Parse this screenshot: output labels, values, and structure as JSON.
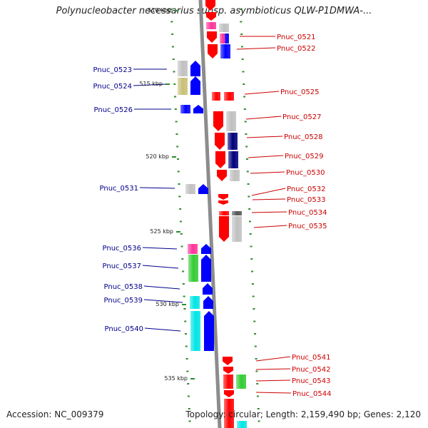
{
  "title": "Polynucleobacter necessarius subsp. asymbioticus QLW-P1DMWA-...",
  "footer": {
    "accession": "Accession: NC_009379",
    "topology": "Topology: circular; Length: 2,159,490 bp; Genes: 2,120"
  },
  "colors": {
    "left_label": "#00008b",
    "right_label": "#cc0000",
    "backbone": "#8c8c8c",
    "tick": "#2e8b2e",
    "gene_red": "#ff0000",
    "gene_blue": "#0000ff",
    "gene_gray": "#c0c0c0",
    "gene_green": "#33cc33",
    "gene_cyan": "#00e5e5",
    "gene_pink": "#ff3399",
    "gene_navy": "#00007a",
    "gene_olive": "#c8c078"
  },
  "scale": {
    "labels": [
      "510 kbp",
      "515 kbp",
      "520 kbp",
      "525 kbp",
      "530 kbp",
      "535 kbp"
    ]
  },
  "genes": {
    "left": [
      "Pnuc_0523",
      "Pnuc_0524",
      "Pnuc_0526",
      "Pnuc_0531",
      "Pnuc_0536",
      "Pnuc_0537",
      "Pnuc_0538",
      "Pnuc_0539",
      "Pnuc_0540"
    ],
    "right": [
      "Pnuc_0521",
      "Pnuc_0522",
      "Pnuc_0525",
      "Pnuc_0527",
      "Pnuc_0528",
      "Pnuc_0529",
      "Pnuc_0530",
      "Pnuc_0532",
      "Pnuc_0533",
      "Pnuc_0534",
      "Pnuc_0535",
      "Pnuc_0541",
      "Pnuc_0542",
      "Pnuc_0543",
      "Pnuc_0544"
    ]
  }
}
